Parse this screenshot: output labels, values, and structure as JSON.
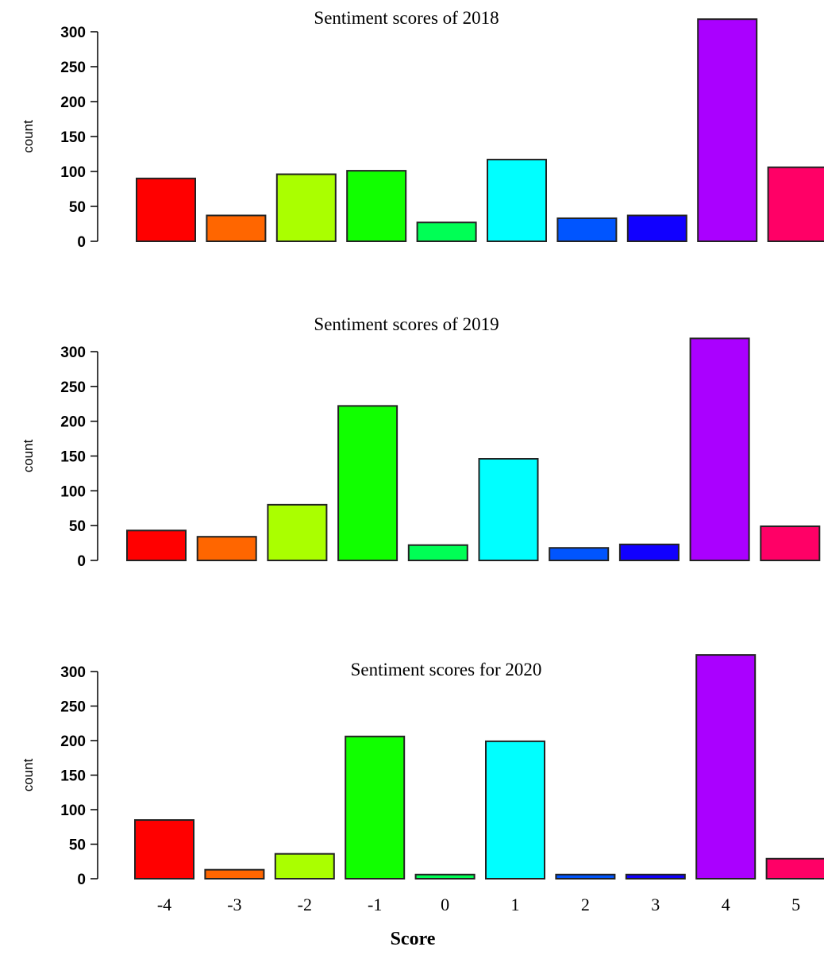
{
  "figure": {
    "shared_xlabel": "Score"
  },
  "colors": [
    "#ff0000",
    "#ff6600",
    "#aaff00",
    "#11ff00",
    "#00ff55",
    "#00ffff",
    "#0055ff",
    "#1100ff",
    "#aa00ff",
    "#ff0066"
  ],
  "chart_data": [
    {
      "type": "bar",
      "title": "Sentiment scores of 2018",
      "ylabel": "count",
      "xlabel": "",
      "categories": [
        "-4",
        "-3",
        "-2",
        "-1",
        "0",
        "1",
        "2",
        "3",
        "4",
        "5"
      ],
      "values": [
        90,
        37,
        96,
        101,
        27,
        117,
        33,
        37,
        318,
        106
      ],
      "yticks": [
        0,
        50,
        100,
        150,
        200,
        250,
        300
      ],
      "ylim": [
        0,
        300
      ],
      "show_xticklabels": false,
      "grid": false
    },
    {
      "type": "bar",
      "title": "Sentiment scores of 2019",
      "ylabel": "count",
      "xlabel": "",
      "categories": [
        "-4",
        "-3",
        "-2",
        "-1",
        "0",
        "1",
        "2",
        "3",
        "4",
        "5"
      ],
      "values": [
        43,
        34,
        80,
        222,
        22,
        146,
        18,
        23,
        319,
        49
      ],
      "yticks": [
        0,
        50,
        100,
        150,
        200,
        250,
        300
      ],
      "ylim": [
        0,
        300
      ],
      "show_xticklabels": false,
      "grid": false
    },
    {
      "type": "bar",
      "title": "Sentiment scores for 2020",
      "ylabel": "count",
      "xlabel": "Score",
      "categories": [
        "-4",
        "-3",
        "-2",
        "-1",
        "0",
        "1",
        "2",
        "3",
        "4",
        "5"
      ],
      "values": [
        85,
        13,
        36,
        206,
        6,
        199,
        6,
        6,
        324,
        29
      ],
      "yticks": [
        0,
        50,
        100,
        150,
        200,
        250,
        300
      ],
      "ylim": [
        0,
        300
      ],
      "show_xticklabels": true,
      "grid": false
    }
  ]
}
